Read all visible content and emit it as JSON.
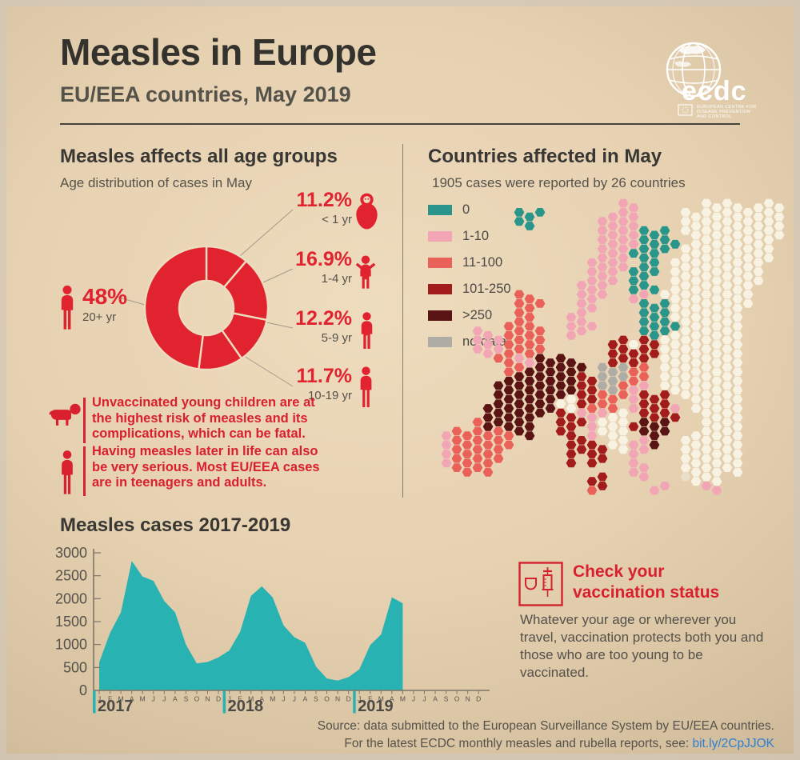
{
  "header": {
    "title": "Measles in Europe",
    "subtitle": "EU/EEA countries, May 2019",
    "logo": {
      "wordmark": "ecdc",
      "org_lines": [
        "EUROPEAN CENTRE FOR",
        "DISEASE PREVENTION",
        "AND CONTROL"
      ]
    }
  },
  "age_section": {
    "title": "Measles affects all age groups",
    "subtitle": "Age distribution of cases in May",
    "notes": [
      {
        "icon": "crawling-baby-icon",
        "text": "Unvaccinated young children are at the highest risk of measles and its complications, which can be fatal."
      },
      {
        "icon": "adult-icon",
        "text": "Having measles later in life can also be very serious. Most EU/EEA cases are in teenagers and adults."
      }
    ]
  },
  "map_section": {
    "title": "Countries affected in May",
    "subtitle": "1905 cases were reported by 26 countries"
  },
  "trend_section": {
    "title": "Measles cases 2017-2019"
  },
  "vaccination_callout": {
    "title": "Check your vaccination status",
    "body": "Whatever your age or wherever you travel, vaccination protects both you and those who are too young to be vaccinated."
  },
  "footer": {
    "line1": "Source: data submitted to the European Surveillance System by EU/EEA countries.",
    "line2_prefix": "For the latest ECDC monthly measles and rubella reports, see: ",
    "link": "bit.ly/2CpJJOK"
  },
  "colors": {
    "accent_red": "#e0232f",
    "chart_teal": "#28b2b2",
    "text_dark": "#34322d",
    "text_gray": "#55524a",
    "link_blue": "#2e7fd0",
    "donut_stroke": "#eedcbe"
  },
  "chart_data": [
    {
      "type": "pie",
      "subtype": "donut",
      "title": "Age distribution of cases in May",
      "direction": "clockwise",
      "start_angle_deg": 0,
      "color": "#e0232f",
      "slices": [
        {
          "label": "< 1 yr",
          "pct_label": "11.2%",
          "value_pct": 11.2,
          "icon": "baby-icon"
        },
        {
          "label": "1-4 yr",
          "pct_label": "16.9%",
          "value_pct": 16.9,
          "icon": "toddler-icon"
        },
        {
          "label": "5-9 yr",
          "pct_label": "12.2%",
          "value_pct": 12.2,
          "icon": "child-icon"
        },
        {
          "label": "10-19 yr",
          "pct_label": "11.7%",
          "value_pct": 11.7,
          "icon": "teen-icon"
        },
        {
          "label": "20+ yr",
          "pct_label": "48%",
          "value_pct": 48.0,
          "icon": "adult-icon"
        }
      ]
    },
    {
      "type": "area",
      "title": "Measles cases 2017-2019",
      "color": "#28b2b2",
      "ylim": [
        0,
        3000
      ],
      "yticks": [
        0,
        500,
        1000,
        1500,
        2000,
        2500,
        3000
      ],
      "month_letters": [
        "J",
        "F",
        "M",
        "A",
        "M",
        "J",
        "J",
        "A",
        "S",
        "O",
        "N",
        "D"
      ],
      "years": [
        "2017",
        "2018",
        "2019"
      ],
      "series": [
        {
          "name": "2017",
          "values": [
            610,
            1250,
            1700,
            2820,
            2480,
            2390,
            1950,
            1700,
            1000,
            590,
            620,
            720
          ]
        },
        {
          "name": "2018",
          "values": [
            870,
            1280,
            2060,
            2270,
            2030,
            1420,
            1160,
            1040,
            520,
            260,
            215,
            290
          ]
        },
        {
          "name": "2019",
          "values": [
            460,
            990,
            1220,
            2030,
            1900
          ]
        }
      ],
      "note": "x axis runs Jan 2017 - Dec 2019; data plotted through May 2019"
    },
    {
      "type": "heatmap",
      "subtype": "hex-tile-map-of-europe",
      "legend": [
        {
          "key": "T",
          "label": "0",
          "color": "#2a958a"
        },
        {
          "key": "P",
          "label": "1-10",
          "color": "#f2a6b5"
        },
        {
          "key": "S",
          "label": "11-100",
          "color": "#e96159"
        },
        {
          "key": "R",
          "label": "101-250",
          "color": "#a31c1c"
        },
        {
          "key": "M",
          "label": ">250",
          "color": "#5a1414"
        },
        {
          "key": "G",
          "label": "no data",
          "color": "#aeaca5"
        }
      ],
      "palette": {
        "T": "#2a958a",
        "P": "#f2a6b5",
        "S": "#e96159",
        "R": "#a31c1c",
        "M": "#5a1414",
        "G": "#aeaca5",
        "W": "#f8f2e3",
        "L": "#eadfc8"
      },
      "non_eea_key": "W",
      "grid_rows": [
        "..................PP......WWWW.WWW.",
        "........TTT......PPP....WWWWWWWWWW.",
        "........TT......PPPP....WWWWWWWWWW.",
        "................PPPPTTT.WWWWWWWWWW.",
        "................PPPPTTTT.WWWWWWWW..",
        "................PPPTTTT.WWWWWWWWW..",
        "...............PPPP.TT.WWWWWWWWWW..",
        "...............PPPPTTT.WWWWWWWWW...",
        "...............PPP.TT..WWWWWWWWW...",
        "..............PPP..TTT.WWWWWWWW....",
        "........SS....PPP..PP.WWWWWWWWW....",
        "........SSS...PP....TTTWWWWWWWW....",
        "........SS...PP.....TTTWWWWWWW.....",
        ".......SSS...PPP....TTTTWWWWWW.....",
        "....PP.SSSS..PP.....TTTWWWWWWW.....",
        "....PPPSSSS......RRWRRWWWWWWWW.....",
        "....PPPSSSS......RRRRRWWWWWWWW.....",
        "......SSPPMMMM...RRRR.WWWWWWWW.....",
        ".......SSMMMMMM.GGGSS.WWWWWWWW.....",
        ".......MMMMMMMRRGGGSS.WWWWWWWW.....",
        "......MMMMMMMMRRGGSPP.WWWWWWWW.....",
        "......MMMMMMMWRRSSSPRRR.WWWWWW.....",
        ".....MMMMMMMWWRSSS.PRRRP.WWWWW.....",
        ".....MMMMMM.RRPPPWW.RRRR..WWWW.....",
        "....SMMMMM..RRRPWWWRMMM...WWWW.....",
        ".PSSSSSSMM..RR.PWWW.MMM..WWWWW.....",
        ".PSSSSSS.....RRR.WWPPM..WWWWWW.....",
        ".PSSSSS......RRRR.WPP...WWWWWW.....",
        ".PSSSSS......R.RR..P....WWWWWW.....",
        "..SSSS.............PP...WWWWWW.....",
        "...............RR...P...LWWW.......",
        "...............SR....PP...PP......."
      ]
    }
  ]
}
